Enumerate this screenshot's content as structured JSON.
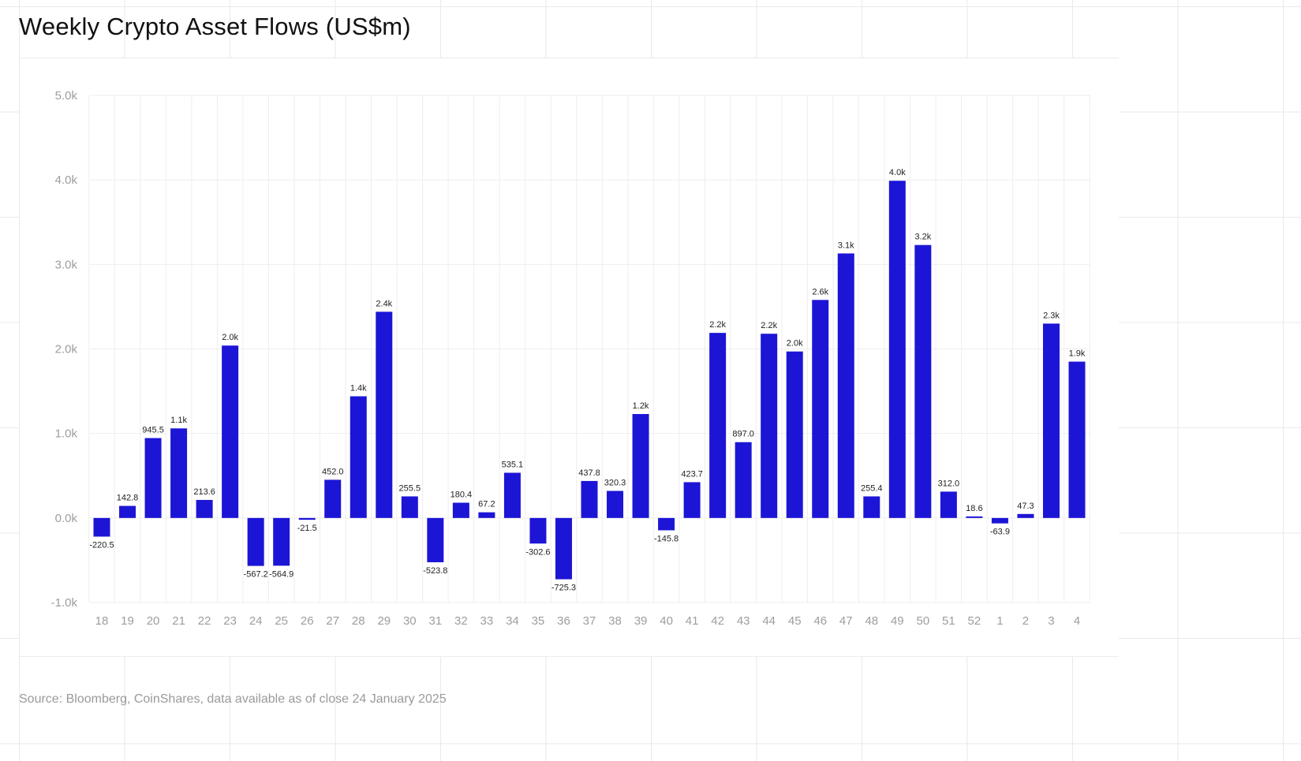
{
  "title": "Weekly Crypto Asset Flows (US$m)",
  "source": "Source: Bloomberg, CoinShares, data available as of close 24 January 2025",
  "colors": {
    "bar": "#1c15d6",
    "grid": "#eeeeee",
    "axis_text": "#9d9d9d",
    "label_text": "#222222"
  },
  "chart_data": {
    "type": "bar",
    "title": "Weekly Crypto Asset Flows (US$m)",
    "xlabel": "",
    "ylabel": "",
    "ylim": [
      -1000,
      5000
    ],
    "yticks": [
      -1000,
      0,
      1000,
      2000,
      3000,
      4000,
      5000
    ],
    "ytick_labels": [
      "-1.0k",
      "0.0k",
      "1.0k",
      "2.0k",
      "3.0k",
      "4.0k",
      "5.0k"
    ],
    "grid": true,
    "legend": "none",
    "categories": [
      "18",
      "19",
      "20",
      "21",
      "22",
      "23",
      "24",
      "25",
      "26",
      "27",
      "28",
      "29",
      "30",
      "31",
      "32",
      "33",
      "34",
      "35",
      "36",
      "37",
      "38",
      "39",
      "40",
      "41",
      "42",
      "43",
      "44",
      "45",
      "46",
      "47",
      "48",
      "49",
      "50",
      "51",
      "52",
      "1",
      "2",
      "3",
      "4"
    ],
    "values": [
      -220.5,
      142.8,
      945.5,
      1060,
      213.6,
      2040,
      -567.2,
      -564.9,
      -21.5,
      452.0,
      1440,
      2440,
      255.5,
      -523.8,
      180.4,
      67.2,
      535.1,
      -302.6,
      -725.3,
      437.8,
      320.3,
      1230,
      -145.8,
      423.7,
      2190,
      897.0,
      2180,
      1970,
      2580,
      3130,
      255.4,
      3990,
      3230,
      312.0,
      18.6,
      -63.9,
      47.3,
      2300,
      1850
    ],
    "data_labels": [
      "-220.5",
      "142.8",
      "945.5",
      "1.1k",
      "213.6",
      "2.0k",
      "-567.2",
      "-564.9",
      "-21.5",
      "452.0",
      "1.4k",
      "2.4k",
      "255.5",
      "-523.8",
      "180.4",
      "67.2",
      "535.1",
      "-302.6",
      "-725.3",
      "437.8",
      "320.3",
      "1.2k",
      "-145.8",
      "423.7",
      "2.2k",
      "897.0",
      "2.2k",
      "2.0k",
      "2.6k",
      "3.1k",
      "255.4",
      "4.0k",
      "3.2k",
      "312.0",
      "18.6",
      "-63.9",
      "47.3",
      "2.3k",
      "1.9k"
    ]
  }
}
